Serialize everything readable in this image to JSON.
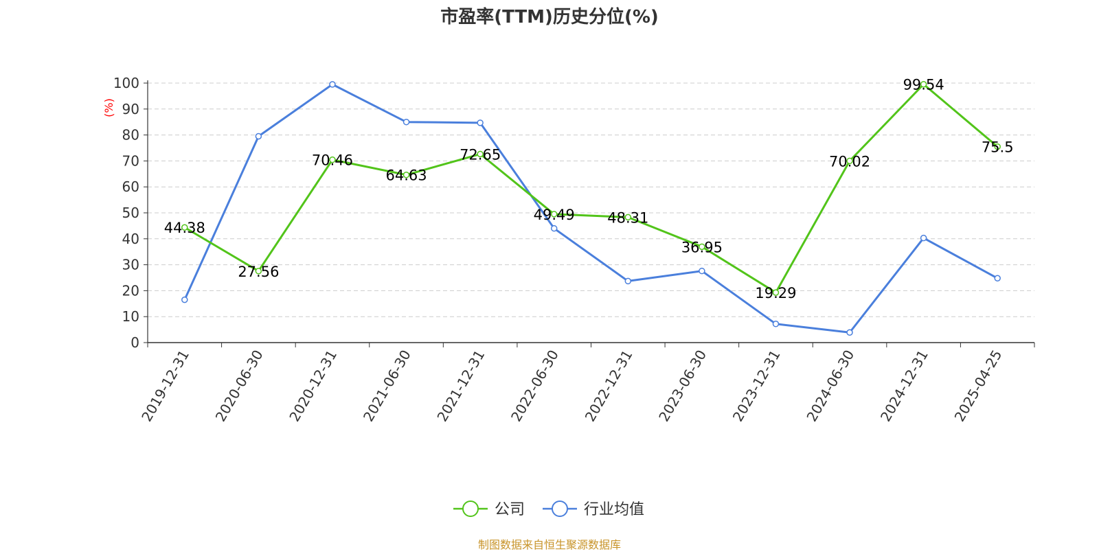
{
  "chart_data": {
    "type": "line",
    "title": "市盈率(TTM)历史分位(%)",
    "ylabel": "(%)",
    "ylim": [
      0,
      100
    ],
    "yticks": [
      0,
      10,
      20,
      30,
      40,
      50,
      60,
      70,
      80,
      90,
      100
    ],
    "categories": [
      "2019-12-31",
      "2020-06-30",
      "2020-12-31",
      "2021-06-30",
      "2021-12-31",
      "2022-06-30",
      "2022-12-31",
      "2023-06-30",
      "2023-12-31",
      "2024-06-30",
      "2024-12-31",
      "2025-04-25"
    ],
    "grid": true,
    "legend_position": "bottom",
    "series": [
      {
        "name": "公司",
        "color": "#52c41a",
        "values": [
          44.38,
          27.56,
          70.46,
          64.63,
          72.65,
          49.49,
          48.31,
          36.95,
          19.29,
          70.02,
          99.54,
          75.5
        ],
        "labels": [
          "44.38",
          "27.56",
          "70.46",
          "64.63",
          "72.65",
          "49.49",
          "48.31",
          "36.95",
          "19.29",
          "70.02",
          "99.54",
          "75.5"
        ]
      },
      {
        "name": "行业均值",
        "color": "#4a7fdc",
        "values": [
          16.5,
          79.5,
          99.5,
          85.0,
          84.7,
          44.0,
          23.7,
          27.6,
          7.2,
          3.9,
          40.3,
          24.8
        ]
      }
    ]
  },
  "footer": "制图数据来自恒生聚源数据库"
}
